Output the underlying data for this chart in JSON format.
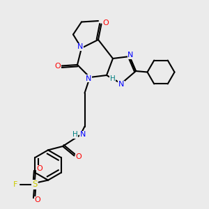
{
  "background_color": "#ebebeb",
  "atom_colors": {
    "N": "#0000ff",
    "O": "#ff0000",
    "H": "#008080",
    "F": "#cccc00",
    "S": "#cccc00",
    "C": "#000000"
  }
}
